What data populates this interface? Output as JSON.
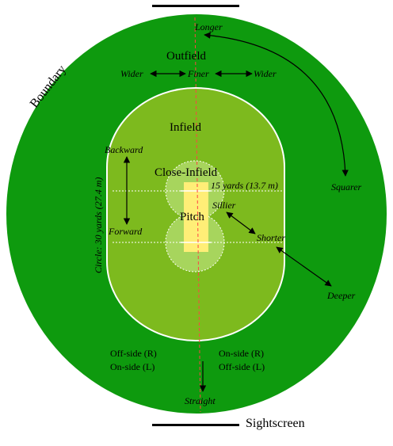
{
  "colors": {
    "outfield": "#0e9a0e",
    "infield": "#7dba1e",
    "close_infield": "#a7d55d",
    "pitch": "#ffee77",
    "red_line": "#ff4444",
    "white": "#ffffff",
    "arrow": "#000000"
  },
  "labels": {
    "boundary": "Boundary",
    "outfield": "Outfield",
    "infield": "Infield",
    "close_infield": "Close-Infield",
    "pitch": "Pitch",
    "sightscreen": "Sightscreen",
    "longer": "Longer",
    "wider_left": "Wider",
    "finer": "Finer",
    "wider_right": "Wider",
    "backward": "Backward",
    "forward": "Forward",
    "circle_distance": "Circle: 30 yards (27.4 m)",
    "close_distance": "15 yards (13.7 m)",
    "sillier": "Sillier",
    "shorter": "Shorter",
    "squarer": "Squarer",
    "deeper": "Deeper",
    "offside_left_1": "Off-side (R)",
    "offside_left_2": "On-side (L)",
    "onside_right_1": "On-side (R)",
    "onside_right_2": "Off-side (L)",
    "straight": "Straight"
  },
  "icons": {
    "pitch_strip": "pitch-rectangle",
    "field": "oval-field"
  }
}
